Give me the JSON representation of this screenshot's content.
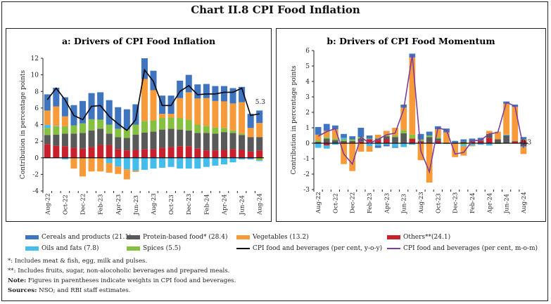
{
  "title": "Chart II.8 CPI Food Inflation",
  "colors": {
    "cereals": "#3f74bf",
    "protein": "#595959",
    "vegetables": "#f79a3a",
    "others": "#c8202c",
    "oils": "#43bdec",
    "spices": "#86c041",
    "yoy_line": "#000000",
    "mom_line": "#7b3fa0"
  },
  "legend": [
    {
      "key": "cereals",
      "label": "Cereals and products (21.1)",
      "kind": "bar"
    },
    {
      "key": "protein",
      "label": "Protein-based food* (28.4)",
      "kind": "bar"
    },
    {
      "key": "vegetables",
      "label": "Vegetables (13.2)",
      "kind": "bar"
    },
    {
      "key": "others",
      "label": "Others**(24.1)",
      "kind": "bar"
    },
    {
      "key": "oils",
      "label": "Oils and fats (7.8)",
      "kind": "bar"
    },
    {
      "key": "spices",
      "label": "Spices (5.5)",
      "kind": "bar"
    },
    {
      "key": "yoy_line",
      "label": "CPI food and beverages (per cent, y-o-y)",
      "kind": "line"
    },
    {
      "key": "mom_line",
      "label": "CPI food and beverages (per cent, m-o-m)",
      "kind": "line"
    }
  ],
  "notes": {
    "n1": "*: Includes meat & fish, egg, milk and pulses.",
    "n2": "**: Includes fruits, sugar, non-alocoholic beverages and prepared meals.",
    "n3_label": "Note:",
    "n3": " Figures in parentheses indicate weights in CPI food and beverages.",
    "n4_label": "Sources:",
    "n4": " NSO; and RBI staff estimates."
  },
  "chart_data": [
    {
      "type": "bar",
      "stacked": true,
      "title": "a: Drivers of CPI Food Inflation",
      "ylabel": "Contribution in percentage points",
      "ylim": [
        -4,
        12
      ],
      "yticks": [
        -4,
        -2,
        0,
        2,
        4,
        6,
        8,
        10,
        12
      ],
      "categories": [
        "Aug-22",
        "Sep-22",
        "Oct-22",
        "Nov-22",
        "Dec-22",
        "Jan-23",
        "Feb-23",
        "Mar-23",
        "Apr-23",
        "May-23",
        "Jun-23",
        "Jul-23",
        "Aug-23",
        "Sep-23",
        "Oct-23",
        "Nov-23",
        "Dec-23",
        "Jan-24",
        "Feb-24",
        "Mar-24",
        "Apr-24",
        "May-24",
        "Jun-24",
        "Jul-24",
        "Aug-24"
      ],
      "tick_labels": [
        "Aug-22",
        "Oct-22",
        "Dec-22",
        "Feb-23",
        "Apr-23",
        "Jun-23",
        "Aug-23",
        "Oct-23",
        "Dec-23",
        "Feb-24",
        "Apr-24",
        "Jun-24",
        "Aug-24"
      ],
      "series": [
        {
          "name": "Others**(24.1)",
          "key": "others",
          "values": [
            1.65,
            1.45,
            1.4,
            1.2,
            1.1,
            1.3,
            1.55,
            1.55,
            1.05,
            0.9,
            0.95,
            1.05,
            1.05,
            1.2,
            1.3,
            1.4,
            1.4,
            1.1,
            0.9,
            0.9,
            0.95,
            1.05,
            0.95,
            0.75,
            0.9
          ]
        },
        {
          "name": "Protein-based food* (28.4)",
          "key": "protein",
          "values": [
            1.1,
            1.35,
            1.5,
            1.7,
            1.9,
            2.0,
            1.95,
            1.35,
            1.45,
            1.5,
            1.85,
            2.0,
            2.1,
            2.2,
            2.2,
            2.0,
            1.9,
            1.9,
            2.1,
            2.0,
            2.15,
            1.95,
            1.8,
            1.75,
            1.6
          ]
        },
        {
          "name": "Spices (5.5)",
          "key": "spices",
          "values": [
            0.85,
            1.0,
            0.9,
            1.0,
            1.15,
            1.35,
            1.1,
            1.1,
            1.0,
            1.0,
            1.2,
            1.4,
            1.35,
            1.4,
            1.35,
            1.4,
            1.3,
            1.0,
            0.85,
            0.75,
            0.5,
            0.3,
            0.15,
            0.0,
            -0.3
          ]
        },
        {
          "name": "Oils and fats (7.8)",
          "key": "oils",
          "values": [
            0.35,
            0.05,
            -0.2,
            0,
            0,
            0,
            0,
            -0.65,
            -1.05,
            -1.4,
            -1.55,
            -1.45,
            -1.3,
            -1.2,
            -1.1,
            -1.3,
            -1.3,
            -1.3,
            -1.1,
            -0.95,
            -0.8,
            -0.55,
            -0.2,
            -0.2,
            -0.1
          ]
        },
        {
          "name": "Vegetables (13.2)",
          "key": "vegetables",
          "values": [
            1.75,
            2.35,
            1.2,
            -1.3,
            -2.25,
            -1.65,
            -1.65,
            -1.15,
            -0.9,
            -1.2,
            -0.15,
            5.05,
            3.65,
            0.5,
            0.45,
            2.4,
            3.3,
            3.15,
            3.35,
            3.2,
            3.2,
            3.25,
            3.8,
            1.1,
            1.7
          ]
        },
        {
          "name": "Cereals and products (21.1)",
          "key": "cereals",
          "values": [
            1.95,
            2.25,
            2.3,
            2.45,
            2.7,
            3.15,
            3.3,
            2.95,
            2.6,
            2.45,
            2.45,
            2.5,
            2.35,
            2.2,
            2.2,
            2.1,
            2.1,
            1.7,
            1.7,
            1.8,
            1.85,
            1.85,
            1.85,
            1.7,
            1.5
          ]
        }
      ],
      "line": {
        "name": "CPI food and beverages (per cent, y-o-y)",
        "key": "yoy_line",
        "values": [
          7.0,
          8.4,
          7.0,
          5.1,
          4.6,
          6.2,
          6.3,
          5.0,
          4.1,
          3.3,
          4.6,
          10.6,
          9.2,
          6.3,
          6.3,
          8.0,
          8.7,
          7.6,
          7.7,
          7.7,
          7.9,
          7.9,
          8.4,
          5.1,
          5.3
        ]
      },
      "annotation": "5.3"
    },
    {
      "type": "bar",
      "stacked": true,
      "title": "b: Drivers of CPI Food Momentum",
      "ylabel": "Contribution in percentage points",
      "ylim": [
        -3,
        6
      ],
      "yticks": [
        -3,
        -2,
        -1,
        0,
        1,
        2,
        3,
        4,
        5,
        6
      ],
      "categories": [
        "Aug-22",
        "Sep-22",
        "Oct-22",
        "Nov-22",
        "Dec-22",
        "Jan-23",
        "Feb-23",
        "Mar-23",
        "Apr-23",
        "May-23",
        "Jun-23",
        "Jul-23",
        "Aug-23",
        "Sep-23",
        "Oct-23",
        "Nov-23",
        "Dec-23",
        "Jan-24",
        "Feb-24",
        "Mar-24",
        "Apr-24",
        "May-24",
        "Jun-24",
        "Jul-24",
        "Aug-24"
      ],
      "tick_labels": [
        "Aug-22",
        "Oct-22",
        "Dec-22",
        "Feb-23",
        "Apr-23",
        "Jun-23",
        "Aug-23",
        "Oct-23",
        "Dec-23",
        "Feb-24",
        "Apr-24",
        "Jun-24",
        "Aug-24"
      ],
      "series": [
        {
          "name": "Others**(24.1)",
          "key": "others",
          "values": [
            0.05,
            -0.15,
            0.0,
            0.05,
            0.05,
            0.1,
            0.25,
            0.2,
            0.25,
            0.05,
            0.05,
            0.3,
            0.1,
            0.05,
            0.15,
            0.0,
            0.0,
            0.05,
            0.1,
            0.15,
            0.35,
            0.0,
            0.0,
            0.1,
            0.2
          ]
        },
        {
          "name": "Protein-based food* (28.4)",
          "key": "protein",
          "values": [
            0.05,
            0.3,
            0.2,
            0.1,
            0.1,
            0.2,
            0.0,
            0.1,
            0.2,
            0.35,
            0.6,
            0.0,
            0.05,
            0.35,
            0.15,
            0.0,
            0.0,
            0.05,
            0.1,
            0.05,
            0.25,
            0.25,
            0.5,
            0.05,
            -0.2
          ]
        },
        {
          "name": "Spices (5.5)",
          "key": "spices",
          "values": [
            0.1,
            0.1,
            0.1,
            0.1,
            0.1,
            0.1,
            0.05,
            0.05,
            0.05,
            0.1,
            0.2,
            0.25,
            0.1,
            0.1,
            0.1,
            0.0,
            0.0,
            -0.1,
            -0.05,
            0.0,
            0.0,
            -0.05,
            0.0,
            0.0,
            0.05
          ]
        },
        {
          "name": "Oils and fats (7.8)",
          "key": "oils",
          "values": [
            -0.3,
            -0.2,
            -0.1,
            0.1,
            0.0,
            0.0,
            -0.2,
            -0.15,
            -0.1,
            -0.25,
            -0.25,
            -0.1,
            0.0,
            0.0,
            -0.05,
            -0.05,
            0.0,
            -0.1,
            -0.1,
            -0.1,
            -0.15,
            0.0,
            0.05,
            0.0,
            -0.05
          ]
        },
        {
          "name": "Vegetables (13.2)",
          "key": "vegetables",
          "values": [
            0.35,
            0.4,
            0.6,
            -1.35,
            -1.8,
            -0.55,
            -0.35,
            0.2,
            0.3,
            0.5,
            1.45,
            5.0,
            -1.1,
            -2.55,
            0.5,
            0.7,
            -0.9,
            -0.6,
            -0.05,
            0.0,
            0.2,
            0.5,
            2.0,
            2.2,
            -0.45
          ]
        },
        {
          "name": "Cereals and products (21.1)",
          "key": "cereals",
          "values": [
            0.5,
            0.45,
            0.25,
            0.25,
            0.2,
            0.6,
            0.2,
            -0.15,
            -0.1,
            -0.05,
            0.2,
            0.25,
            0.35,
            0.25,
            0.2,
            0.25,
            0.15,
            0.15,
            0.1,
            0.15,
            0.0,
            0.0,
            0.15,
            0.15,
            0.15
          ]
        }
      ],
      "line": {
        "name": "CPI food and beverages (per cent, m-o-m)",
        "key": "mom_line",
        "values": [
          0.45,
          0.75,
          0.95,
          -0.7,
          -1.35,
          0.4,
          0.0,
          0.25,
          0.55,
          0.65,
          2.2,
          5.7,
          -0.5,
          -1.85,
          1.0,
          0.85,
          -0.7,
          -0.6,
          0.15,
          0.2,
          0.6,
          0.7,
          2.65,
          2.4,
          -0.3
        ]
      },
      "annotation": "-0.3"
    }
  ]
}
